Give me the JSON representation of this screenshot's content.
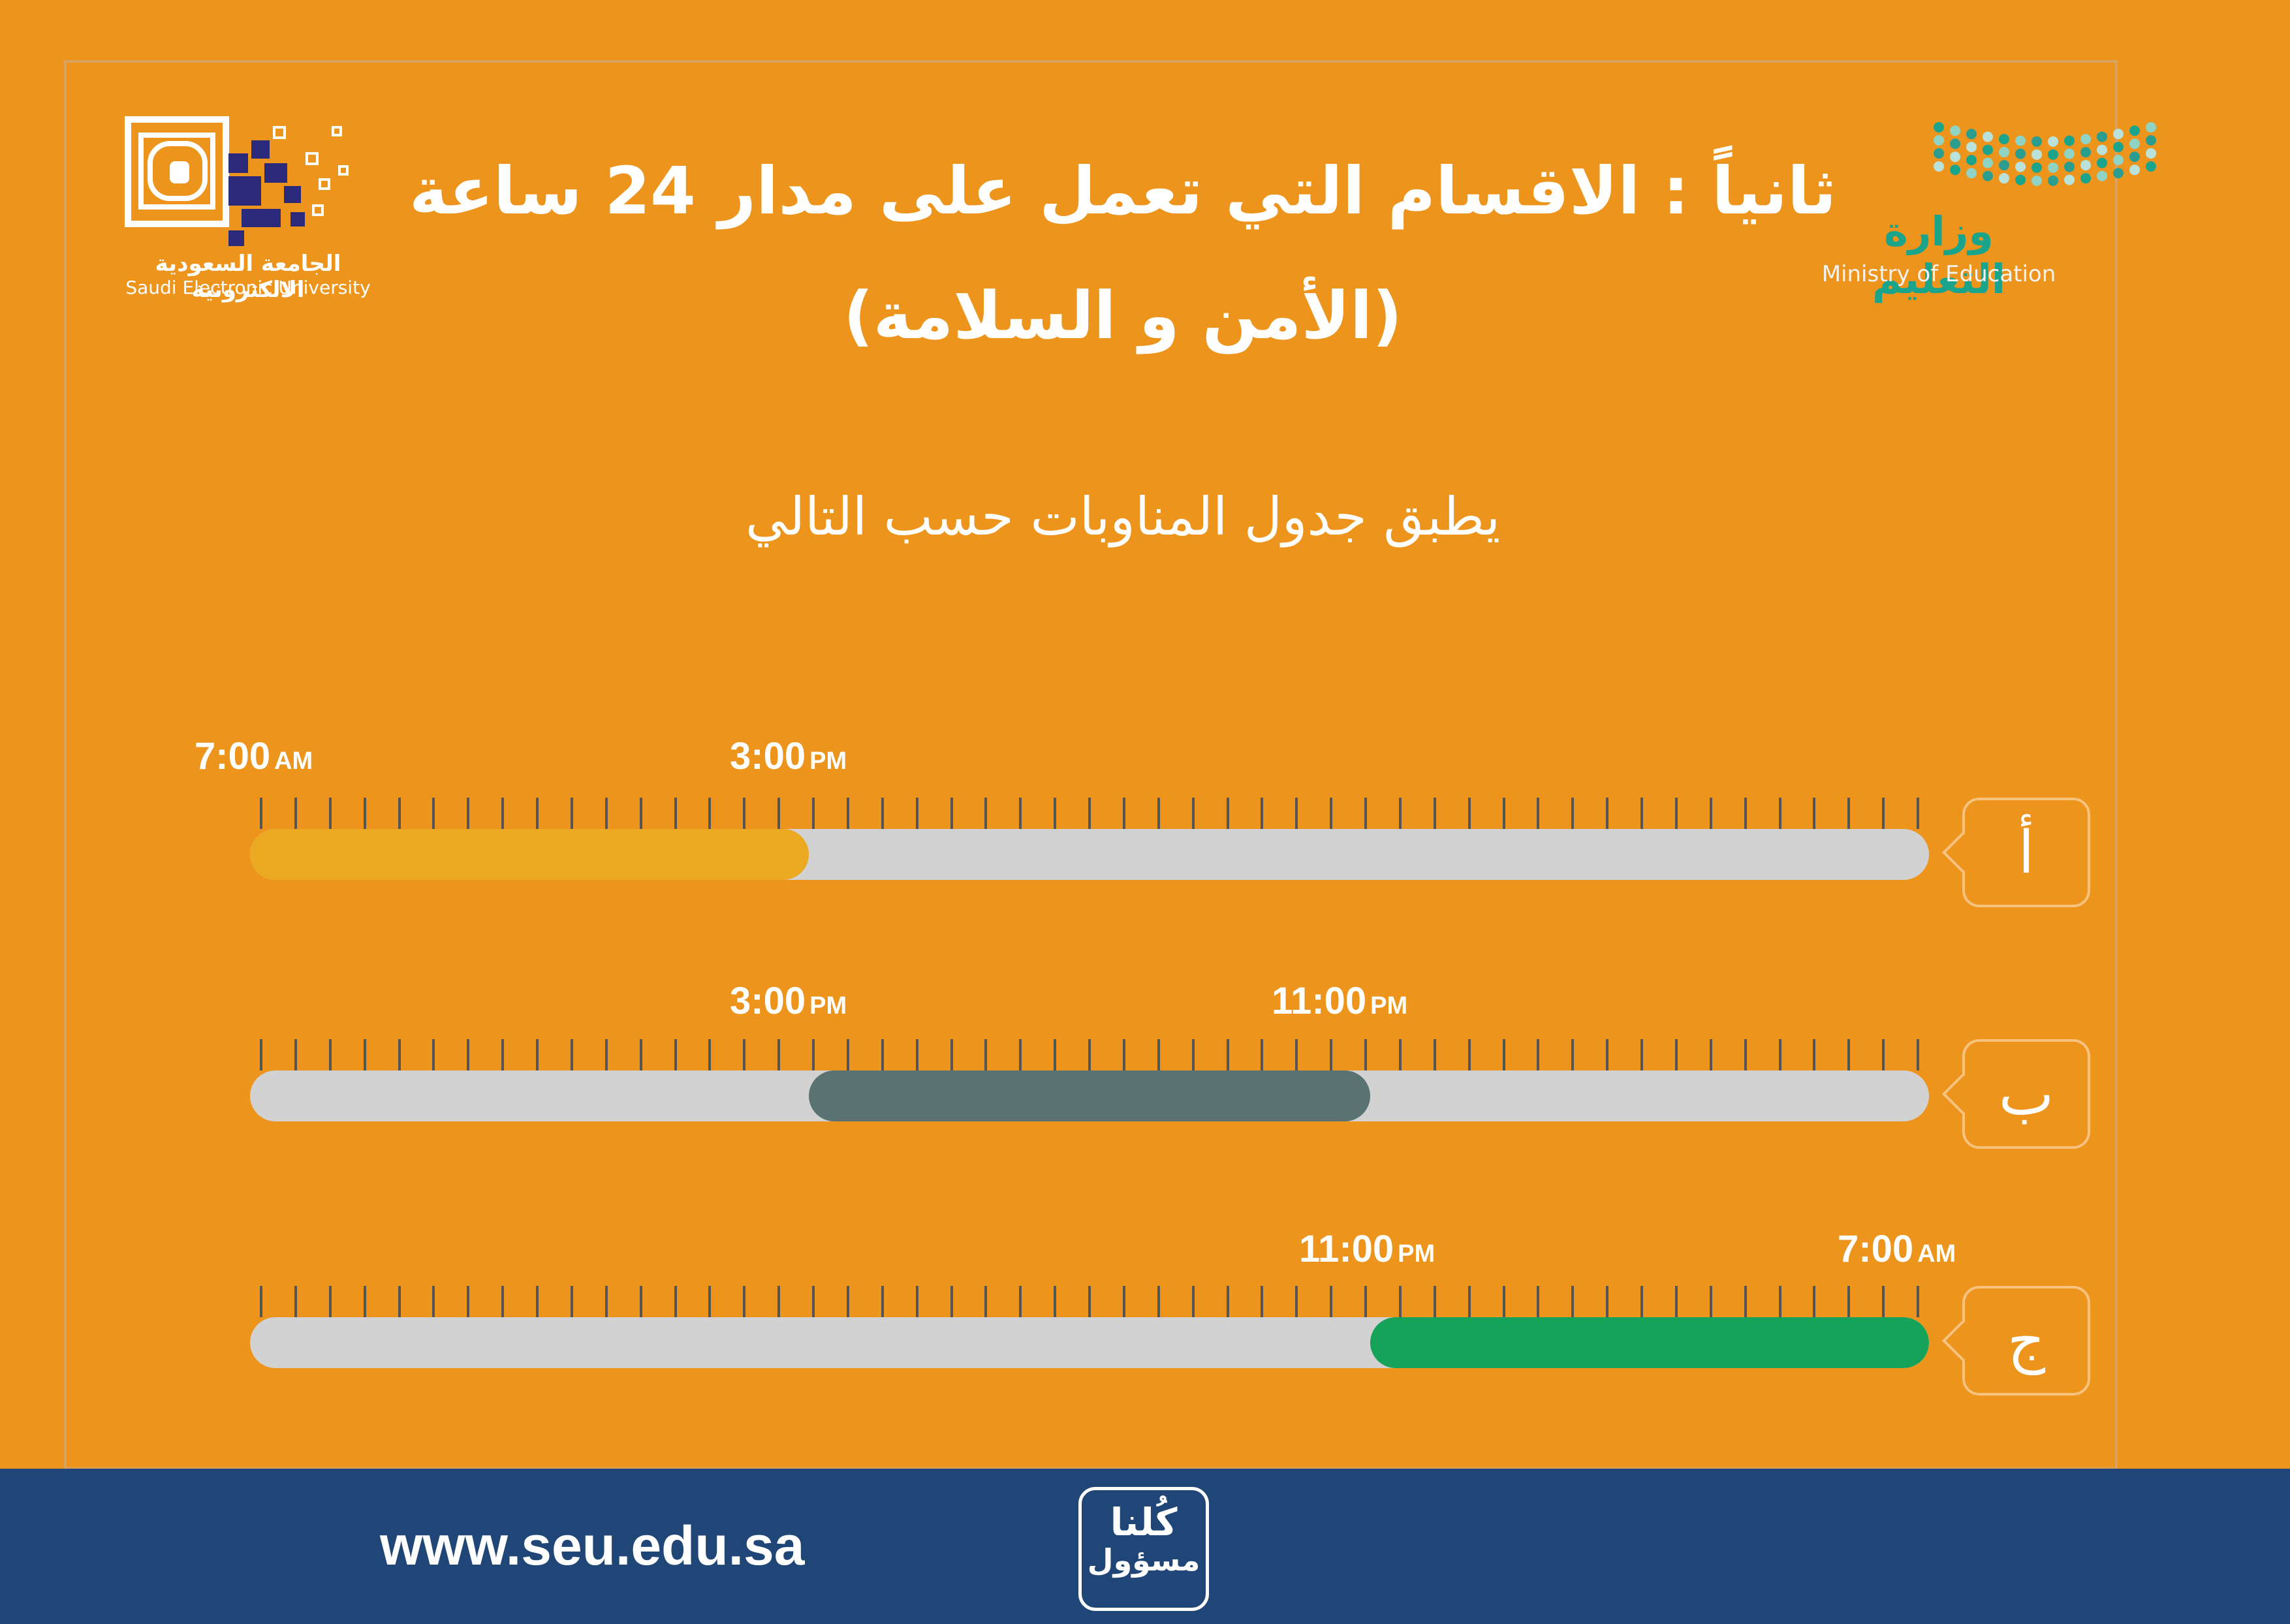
{
  "header": {
    "title": "ثانياً : الاقسام التي تعمل على مدار 24 ساعة",
    "subtitle": "(الأمن و السلامة)",
    "intro": "يطبق جدول المناوبات حسب التالي"
  },
  "logos": {
    "seu": {
      "name_ar": "الجامعة السعودية الالكترونية",
      "name_en": "Saudi Electronic University"
    },
    "moe": {
      "name_ar": "وزارة التعليم",
      "name_en": "Ministry of Education"
    }
  },
  "shifts": [
    {
      "label": "أ",
      "start_time": "7:00",
      "start_period": "AM",
      "end_time": "3:00",
      "end_period": "PM",
      "start_fraction": 0,
      "end_fraction": 0.333,
      "color": "#eaa920"
    },
    {
      "label": "ب",
      "start_time": "3:00",
      "start_period": "PM",
      "end_time": "11:00",
      "end_period": "PM",
      "start_fraction": 0.333,
      "end_fraction": 0.667,
      "color": "#5a7372"
    },
    {
      "label": "ج",
      "start_time": "11:00",
      "start_period": "PM",
      "end_time": "7:00",
      "end_period": "AM",
      "start_fraction": 0.667,
      "end_fraction": 1,
      "color": "#16a359"
    }
  ],
  "track_color": "#d2d2d2",
  "background_color": "#ed941d",
  "footer": {
    "website": "www.seu.edu.sa",
    "motto_line1": "كُلنا",
    "motto_line2": "مسؤول",
    "color": "#1f4677"
  }
}
